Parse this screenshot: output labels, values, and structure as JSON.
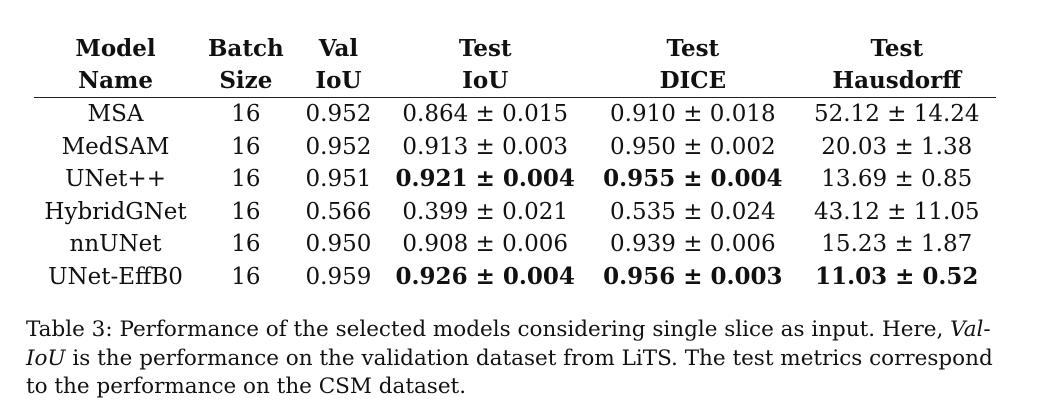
{
  "table": {
    "headers": [
      {
        "line1": "Model",
        "line2": "Name"
      },
      {
        "line1": "Batch",
        "line2": "Size"
      },
      {
        "line1": "Val",
        "line2": "IoU"
      },
      {
        "line1": "Test",
        "line2": "IoU"
      },
      {
        "line1": "Test",
        "line2": "DICE"
      },
      {
        "line1": "Test",
        "line2": "Hausdorff"
      }
    ],
    "rows": [
      {
        "cells": [
          "MSA",
          "16",
          "0.952",
          "0.864 ± 0.015",
          "0.910 ± 0.018",
          "52.12 ± 14.24"
        ],
        "bold": [
          false,
          false,
          false,
          false,
          false,
          false
        ]
      },
      {
        "cells": [
          "MedSAM",
          "16",
          "0.952",
          "0.913 ± 0.003",
          "0.950 ± 0.002",
          "20.03 ± 1.38"
        ],
        "bold": [
          false,
          false,
          false,
          false,
          false,
          false
        ]
      },
      {
        "cells": [
          "UNet++",
          "16",
          "0.951",
          "0.921 ± 0.004",
          "0.955 ± 0.004",
          "13.69 ± 0.85"
        ],
        "bold": [
          false,
          false,
          false,
          true,
          true,
          false
        ]
      },
      {
        "cells": [
          "HybridGNet",
          "16",
          "0.566",
          "0.399 ± 0.021",
          "0.535 ± 0.024",
          "43.12 ± 11.05"
        ],
        "bold": [
          false,
          false,
          false,
          false,
          false,
          false
        ]
      },
      {
        "cells": [
          "nnUNet",
          "16",
          "0.950",
          "0.908 ± 0.006",
          "0.939 ± 0.006",
          "15.23 ± 1.87"
        ],
        "bold": [
          false,
          false,
          false,
          false,
          false,
          false
        ]
      },
      {
        "cells": [
          "UNet-EffB0",
          "16",
          "0.959",
          "0.926 ± 0.004",
          "0.956 ± 0.003",
          "11.03 ± 0.52"
        ],
        "bold": [
          false,
          false,
          false,
          true,
          true,
          true
        ]
      }
    ]
  },
  "caption": {
    "label": "Table 3:",
    "text_before": "Performance of the selected models considering single slice as input. Here,",
    "emph": "Val-IoU",
    "text_after": "is the performance on the validation dataset from LiTS. The test metrics correspond to the performance on the CSM dataset."
  }
}
